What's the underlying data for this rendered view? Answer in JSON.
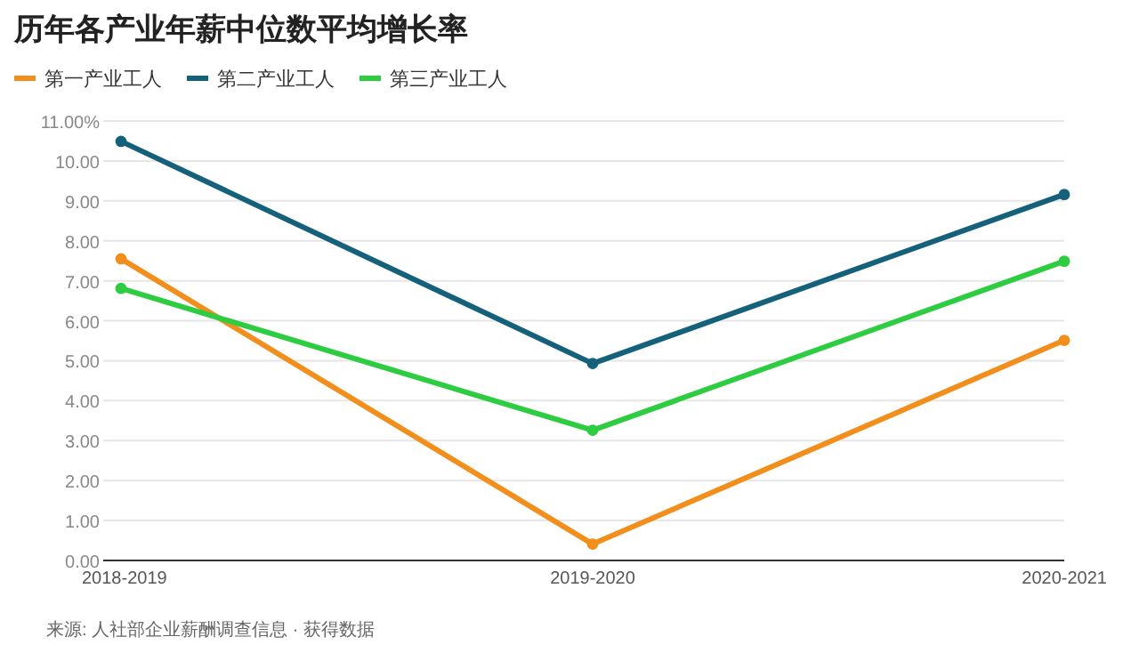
{
  "chart_data": {
    "type": "line",
    "title": "历年各产业年薪中位数平均增长率",
    "categories": [
      "2018-2019",
      "2019-2020",
      "2020-2021"
    ],
    "series": [
      {
        "name": "第一产业工人",
        "color": "#f28e1c",
        "values": [
          7.55,
          0.41,
          5.51
        ]
      },
      {
        "name": "第二产业工人",
        "color": "#15607a",
        "values": [
          10.49,
          4.93,
          9.16
        ]
      },
      {
        "name": "第三产业工人",
        "color": "#2ecc40",
        "values": [
          6.81,
          3.26,
          7.49
        ]
      }
    ],
    "ylim": [
      0,
      11
    ],
    "yticks": [
      {
        "value": 0,
        "label": "0.00"
      },
      {
        "value": 1,
        "label": "1.00"
      },
      {
        "value": 2,
        "label": "2.00"
      },
      {
        "value": 3,
        "label": "3.00"
      },
      {
        "value": 4,
        "label": "4.00"
      },
      {
        "value": 5,
        "label": "5.00"
      },
      {
        "value": 6,
        "label": "6.00"
      },
      {
        "value": 7,
        "label": "7.00"
      },
      {
        "value": 8,
        "label": "8.00"
      },
      {
        "value": 9,
        "label": "9.00"
      },
      {
        "value": 10,
        "label": "10.00"
      },
      {
        "value": 11,
        "label": "11.00%"
      }
    ],
    "grid": "y",
    "legend": "top left",
    "marker": "circle",
    "line_style": "solid",
    "annotations": [
      "来源: 人社部企业薪酬调查信息 · 获得数据"
    ]
  }
}
